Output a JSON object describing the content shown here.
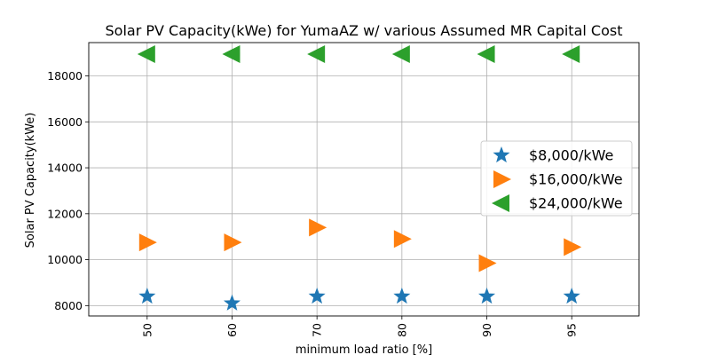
{
  "chart_data": {
    "type": "scatter",
    "title": "Solar PV Capacity(kWe) for YumaAZ w/ various Assumed MR Capital Cost",
    "xlabel": "minimum load ratio [%]",
    "ylabel": "Solar PV Capacity(kWe)",
    "categories": [
      "50",
      "60",
      "70",
      "80",
      "90",
      "95"
    ],
    "yticks": [
      8000,
      10000,
      12000,
      14000,
      16000,
      18000
    ],
    "ylim": [
      7550,
      19450
    ],
    "grid": true,
    "legend_position": "center-right",
    "series": [
      {
        "name": "$8,000/kWe",
        "marker": "star",
        "color": "#1f77b4",
        "values": [
          8400,
          8100,
          8400,
          8400,
          8400,
          8400
        ]
      },
      {
        "name": "$16,000/kWe",
        "marker": "triangle-right",
        "color": "#ff7f0e",
        "values": [
          10750,
          10750,
          11400,
          10900,
          9850,
          10550
        ]
      },
      {
        "name": "$24,000/kWe",
        "marker": "triangle-left",
        "color": "#2ca02c",
        "values": [
          18950,
          18950,
          18950,
          18950,
          18950,
          18950
        ]
      }
    ]
  }
}
